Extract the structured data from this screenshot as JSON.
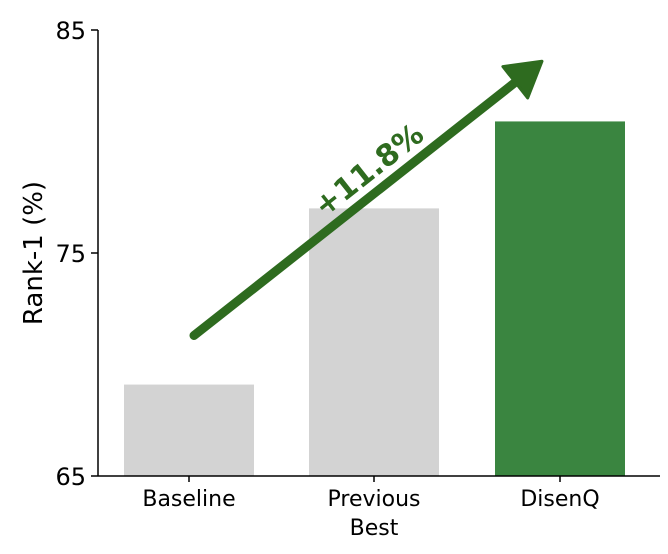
{
  "chart_data": {
    "type": "bar",
    "categories": [
      "Baseline",
      "Previous\nBest",
      "DisenQ"
    ],
    "values": [
      69.1,
      77.0,
      80.9
    ],
    "bar_colors": [
      "#d3d3d3",
      "#d3d3d3",
      "#3a8540"
    ],
    "ylabel": "Rank-1 (%)",
    "ylim": [
      65,
      85
    ],
    "yticks": [
      65,
      75,
      85
    ],
    "grid": false,
    "annotation": {
      "text": "+11.8%",
      "color": "#2e6b1f",
      "arrow_from": [
        "Baseline",
        71.3
      ],
      "arrow_to": [
        "DisenQ",
        83.6
      ]
    }
  }
}
